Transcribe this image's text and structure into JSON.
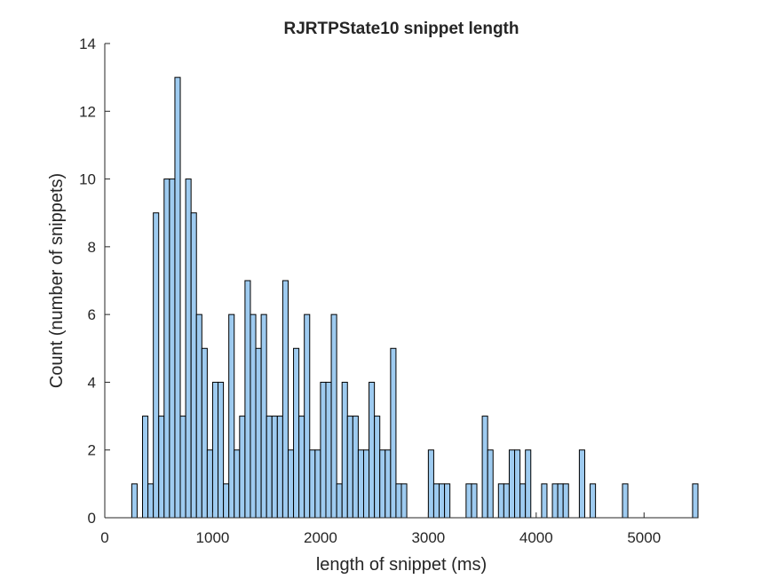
{
  "chart_data": {
    "type": "histogram",
    "title": "RJRTPState10 snippet length",
    "x_label": "length of snippet (ms)",
    "y_label": "Count (number of snippets)",
    "color": "#9ecbf0",
    "edge_color": "#000000",
    "bins": [
      0,
      50,
      100,
      150,
      200,
      250,
      300,
      350,
      400,
      450,
      500,
      550,
      600,
      650,
      700,
      750,
      800,
      850,
      900,
      950,
      1000,
      1050,
      1100,
      1150,
      1200,
      1250,
      1300,
      1350,
      1400,
      1450,
      1500,
      1550,
      1600,
      1650,
      1700,
      1750,
      1800,
      1850,
      1900,
      1950,
      2000,
      2050,
      2100,
      2150,
      2200,
      2250,
      2300,
      2350,
      2400,
      2450,
      2500,
      2550,
      2600,
      2650,
      2700,
      2750,
      2800,
      2850,
      2900,
      2950,
      3000,
      3050,
      3100,
      3150,
      3200,
      3250,
      3300,
      3350,
      3400,
      3450,
      3500,
      3550,
      3600,
      3650,
      3700,
      3750,
      3800,
      3850,
      3900,
      3950,
      4000,
      4050,
      4100,
      4150,
      4200,
      4250,
      4300,
      4350,
      4400,
      4450,
      4500,
      4550,
      4600,
      4650,
      4700,
      4750,
      4800,
      4850,
      4900,
      4950,
      5000,
      5050,
      5100,
      5150,
      5200,
      5250,
      5300,
      5350,
      5400,
      5450,
      5500
    ],
    "counts": [
      0,
      0,
      0,
      0,
      0,
      1,
      0,
      3,
      1,
      9,
      3,
      10,
      10,
      13,
      3,
      10,
      9,
      6,
      5,
      2,
      4,
      4,
      1,
      6,
      2,
      3,
      7,
      6,
      5,
      6,
      3,
      3,
      3,
      7,
      2,
      5,
      3,
      6,
      2,
      2,
      4,
      4,
      6,
      1,
      4,
      3,
      3,
      2,
      2,
      4,
      3,
      2,
      2,
      5,
      1,
      1,
      0,
      0,
      0,
      0,
      2,
      1,
      1,
      1,
      0,
      0,
      0,
      1,
      1,
      0,
      3,
      2,
      0,
      1,
      1,
      2,
      2,
      1,
      2,
      0,
      0,
      1,
      0,
      1,
      1,
      1,
      0,
      0,
      2,
      0,
      1,
      0,
      0,
      0,
      0,
      0,
      1,
      0,
      0,
      0,
      0,
      0,
      0,
      0,
      0,
      0,
      0,
      0,
      0,
      1
    ],
    "xlim": [
      0,
      5500
    ],
    "ylim": [
      0,
      14
    ],
    "xticks": [
      0,
      1000,
      2000,
      3000,
      4000,
      5000
    ],
    "yticks": [
      0,
      2,
      4,
      6,
      8,
      10,
      12,
      14
    ]
  }
}
